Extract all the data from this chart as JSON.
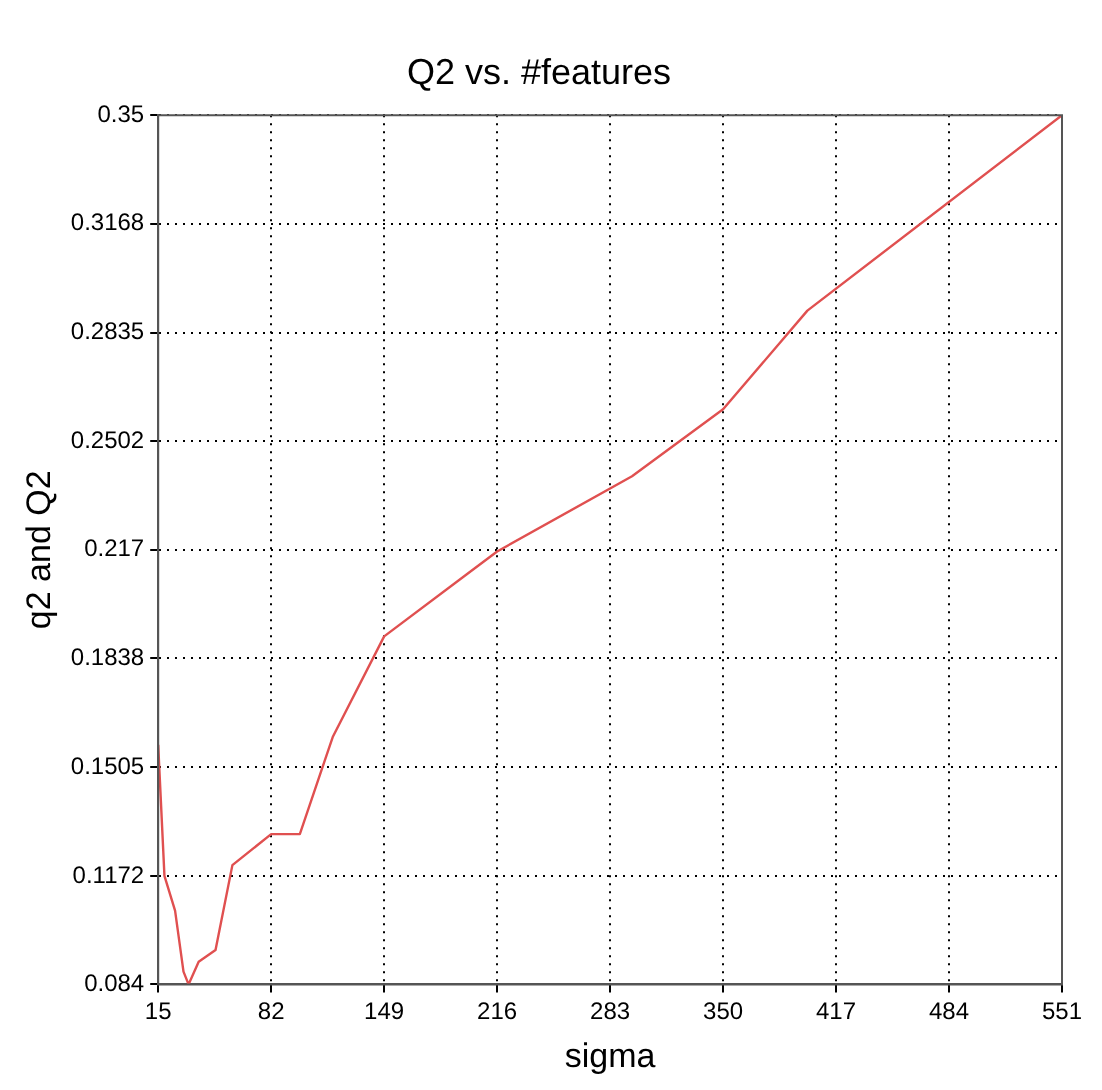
{
  "chart_data": {
    "type": "line",
    "title": "Q2 vs. #features",
    "xlabel": "sigma",
    "ylabel": "q2 and Q2",
    "x": [
      15,
      18.7,
      25,
      30,
      33,
      39,
      49,
      59,
      82,
      99,
      118.5,
      149,
      199,
      216,
      296,
      350,
      400,
      551
    ],
    "series": [
      {
        "color": "#e05050",
        "values": [
          0.1573,
          0.1172,
          0.1066,
          0.0879,
          0.084,
          0.0909,
          0.0945,
          0.1205,
          0.13,
          0.13,
          0.1597,
          0.1905,
          0.2099,
          0.2165,
          0.2395,
          0.26,
          0.2902,
          0.35
        ]
      }
    ],
    "xlim": [
      15,
      551
    ],
    "xticks": [
      15,
      82,
      149,
      216,
      283,
      350,
      417,
      484,
      551
    ],
    "ylim": [
      0.084,
      0.35
    ],
    "yticks": [
      0.084,
      0.1172,
      0.1505,
      0.1838,
      0.217,
      0.2502,
      0.2835,
      0.3168,
      0.35
    ],
    "grid": true,
    "legend": false,
    "marker": "none",
    "line_style": "solid"
  }
}
